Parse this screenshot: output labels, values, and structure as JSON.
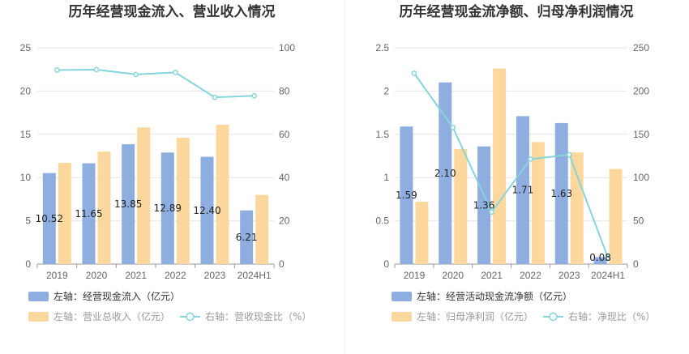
{
  "colors": {
    "bar_primary": "#8eaee0",
    "bar_secondary": "#fdd89e",
    "line": "#86d5da",
    "grid": "#e6e6e6",
    "axis": "#999999"
  },
  "chart_data": [
    {
      "type": "bar",
      "title": "历年经营现金流入、营业收入情况",
      "categories": [
        "2019",
        "2020",
        "2021",
        "2022",
        "2023",
        "2024H1"
      ],
      "y_left": {
        "min": 0,
        "max": 25,
        "ticks": [
          "0",
          "5",
          "10",
          "15",
          "20",
          "25"
        ]
      },
      "y_right": {
        "min": 0,
        "max": 100,
        "ticks": [
          "0",
          "20",
          "40",
          "60",
          "80",
          "100"
        ]
      },
      "series": [
        {
          "name": "左轴：经营现金流入（亿元）",
          "kind": "bar",
          "axis": "left",
          "color": "#8eaee0",
          "values": [
            10.52,
            11.65,
            13.85,
            12.89,
            12.4,
            6.21
          ],
          "labels": [
            "10.52",
            "11.65",
            "13.85",
            "12.89",
            "12.40",
            "6.21"
          ]
        },
        {
          "name": "左轴：营业总收入（亿元）",
          "kind": "bar",
          "axis": "left",
          "color": "#fdd89e",
          "values": [
            11.7,
            13.0,
            15.8,
            14.6,
            16.1,
            8.0
          ]
        },
        {
          "name": "右轴：营收现金比（%）",
          "kind": "line",
          "axis": "right",
          "color": "#86d5da",
          "values": [
            89.7,
            89.9,
            87.7,
            88.6,
            77.1,
            77.8
          ]
        }
      ],
      "legend_position": "bottom-left"
    },
    {
      "type": "bar",
      "title": "历年经营现金流净额、归母净利润情况",
      "categories": [
        "2019",
        "2020",
        "2021",
        "2022",
        "2023",
        "2024H1"
      ],
      "y_left": {
        "min": 0,
        "max": 2.5,
        "ticks": [
          "0",
          "0.5",
          "1",
          "1.5",
          "2",
          "2.5"
        ]
      },
      "y_right": {
        "min": 0,
        "max": 250,
        "ticks": [
          "0",
          "50",
          "100",
          "150",
          "200",
          "250"
        ]
      },
      "series": [
        {
          "name": "左轴：经营活动现金流净额（亿元）",
          "kind": "bar",
          "axis": "left",
          "color": "#8eaee0",
          "values": [
            1.59,
            2.1,
            1.36,
            1.71,
            1.63,
            0.08
          ],
          "labels": [
            "1.59",
            "2.10",
            "1.36",
            "1.71",
            "1.63",
            "0.08"
          ]
        },
        {
          "name": "左轴：归母净利润（亿元）",
          "kind": "bar",
          "axis": "left",
          "color": "#fdd89e",
          "values": [
            0.72,
            1.33,
            2.26,
            1.41,
            1.29,
            1.1
          ]
        },
        {
          "name": "右轴：净现比（%）",
          "kind": "line",
          "axis": "right",
          "color": "#86d5da",
          "values": [
            220.5,
            157.9,
            60.2,
            121.3,
            126.4,
            7.3
          ]
        }
      ],
      "legend_position": "bottom-left"
    }
  ]
}
